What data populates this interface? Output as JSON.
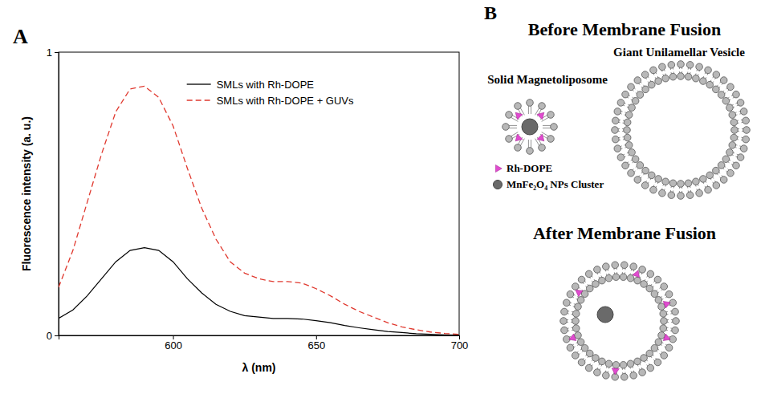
{
  "chart_data": {
    "type": "line",
    "panel": "A",
    "x_label": "λ (nm)",
    "y_label": "Fluorescence intensity (a. u.)",
    "x": [
      560,
      565,
      570,
      575,
      580,
      585,
      590,
      595,
      600,
      605,
      610,
      615,
      620,
      625,
      630,
      635,
      640,
      645,
      650,
      655,
      660,
      665,
      670,
      675,
      680,
      685,
      690,
      695,
      700
    ],
    "series": [
      {
        "name": "SMLs with Rh-DOPE",
        "color": "#000000",
        "line_style": "solid",
        "values": [
          0.06,
          0.09,
          0.14,
          0.2,
          0.26,
          0.3,
          0.31,
          0.3,
          0.26,
          0.2,
          0.15,
          0.11,
          0.085,
          0.07,
          0.065,
          0.06,
          0.06,
          0.058,
          0.052,
          0.045,
          0.035,
          0.027,
          0.02,
          0.014,
          0.01,
          0.006,
          0.004,
          0.002,
          0.001
        ]
      },
      {
        "name": "SMLs with Rh-DOPE + GUVs",
        "color": "#e0392f",
        "line_style": "dashed",
        "values": [
          0.17,
          0.3,
          0.47,
          0.64,
          0.79,
          0.87,
          0.88,
          0.84,
          0.74,
          0.59,
          0.45,
          0.34,
          0.26,
          0.22,
          0.2,
          0.19,
          0.19,
          0.185,
          0.165,
          0.14,
          0.11,
          0.085,
          0.065,
          0.045,
          0.03,
          0.02,
          0.012,
          0.007,
          0.004
        ]
      }
    ],
    "xlim": [
      560,
      700
    ],
    "xticks": [
      600,
      650,
      700
    ],
    "ylim": [
      0,
      1
    ],
    "yticks": [
      0,
      1
    ],
    "legend": "top"
  },
  "diagram": {
    "panel": "B",
    "before": {
      "title": "Before Membrane Fusion",
      "sml_label": "Solid Magnetoliposome",
      "guv_label": "Giant Unilamellar Vesicle"
    },
    "key": [
      {
        "label": "Rh-DOPE"
      },
      {
        "label": "MnFe₂O₄ NPs Cluster"
      }
    ],
    "after": {
      "title": "After Membrane Fusion"
    }
  }
}
